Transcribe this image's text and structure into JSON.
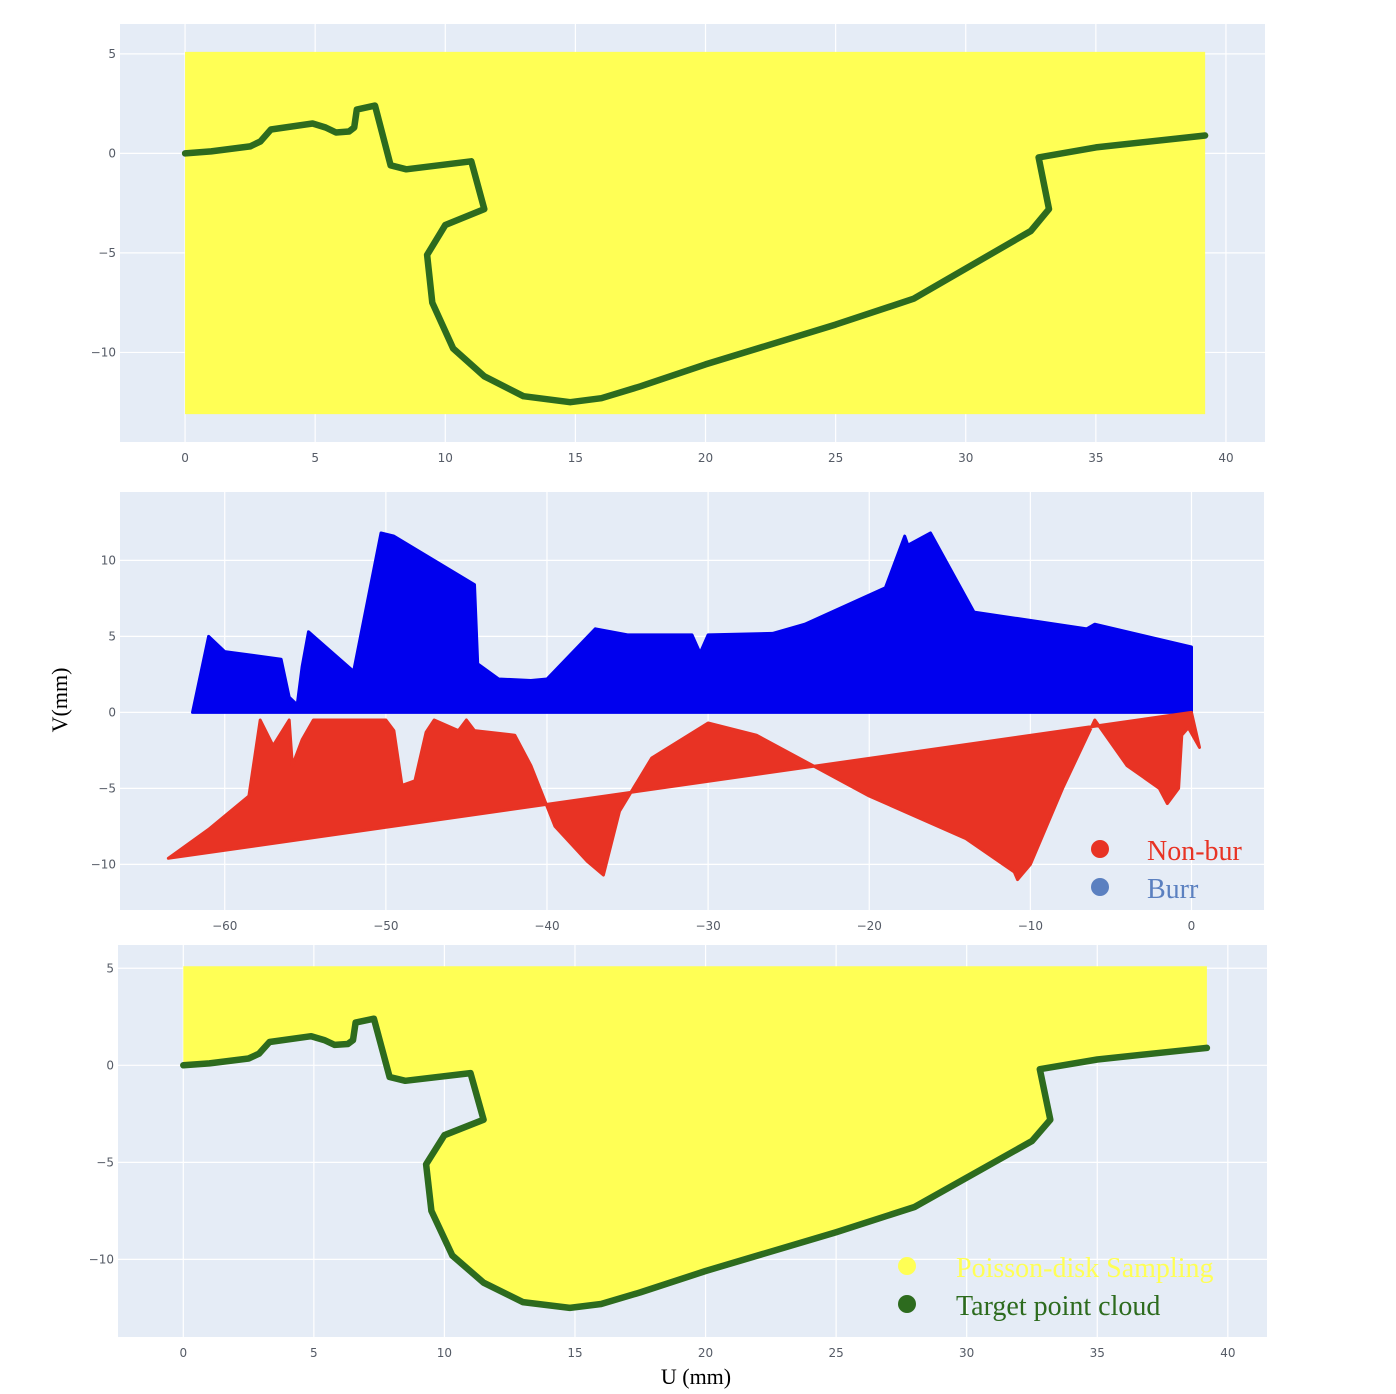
{
  "figure": {
    "ylabel": "V(mm)",
    "xlabel": "U (mm)",
    "colors": {
      "plot_bg": "#e5ecf6",
      "grid": "#ffffff",
      "yellow": "#ffff55",
      "green": "#2d6b1e",
      "blue": "#0000ee",
      "red": "#e83324",
      "burr_marker": "#5b80c0"
    }
  },
  "chart_data": [
    {
      "type": "scatter",
      "panel": "top",
      "xlim": [
        -2.5,
        41.5
      ],
      "ylim": [
        -14.5,
        6.5
      ],
      "xticks": [
        0,
        5,
        10,
        15,
        20,
        25,
        30,
        35,
        40
      ],
      "yticks": [
        5,
        0,
        -5,
        -10
      ],
      "series": [
        {
          "role": "sampling-region",
          "kind": "rect",
          "u_range": [
            0,
            39.2
          ],
          "v_range": [
            -13.1,
            5.1
          ]
        },
        {
          "role": "target-curve",
          "kind": "line",
          "points": [
            [
              0,
              0
            ],
            [
              1,
              0.1
            ],
            [
              2.5,
              0.35
            ],
            [
              2.9,
              0.6
            ],
            [
              3.3,
              1.2
            ],
            [
              4.9,
              1.5
            ],
            [
              5.4,
              1.3
            ],
            [
              5.8,
              1.05
            ],
            [
              6.3,
              1.1
            ],
            [
              6.5,
              1.3
            ],
            [
              6.6,
              2.2
            ],
            [
              7.3,
              2.4
            ],
            [
              7.9,
              -0.6
            ],
            [
              8.5,
              -0.8
            ],
            [
              11.0,
              -0.4
            ],
            [
              11.5,
              -2.8
            ],
            [
              10.0,
              -3.6
            ],
            [
              9.3,
              -5.1
            ],
            [
              9.5,
              -7.5
            ],
            [
              10.3,
              -9.8
            ],
            [
              11.5,
              -11.2
            ],
            [
              13.0,
              -12.2
            ],
            [
              14.8,
              -12.5
            ],
            [
              16.0,
              -12.3
            ],
            [
              17.5,
              -11.7
            ],
            [
              20.0,
              -10.6
            ],
            [
              25.0,
              -8.6
            ],
            [
              28.0,
              -7.3
            ],
            [
              32.5,
              -3.9
            ],
            [
              33.2,
              -2.8
            ],
            [
              32.8,
              -0.2
            ],
            [
              35.0,
              0.3
            ],
            [
              38.5,
              0.8
            ],
            [
              39.2,
              0.9
            ]
          ]
        }
      ]
    },
    {
      "type": "area",
      "panel": "middle",
      "xlim": [
        -66.5,
        4.5
      ],
      "ylim": [
        -13,
        14.5
      ],
      "xticks": [
        -60,
        -50,
        -40,
        -30,
        -20,
        -10,
        0
      ],
      "yticks": [
        10,
        5,
        0,
        -5,
        -10
      ],
      "series": [
        {
          "name": "Burr",
          "points": [
            [
              -62,
              0
            ],
            [
              -61,
              5
            ],
            [
              -60,
              4
            ],
            [
              -56.5,
              3.5
            ],
            [
              -56,
              1
            ],
            [
              -55.5,
              0.5
            ],
            [
              -55.2,
              3
            ],
            [
              -54.8,
              5.3
            ],
            [
              -52,
              2.7
            ],
            [
              -50.3,
              11.8
            ],
            [
              -49.5,
              11.6
            ],
            [
              -44.5,
              8.4
            ],
            [
              -44.3,
              3.2
            ],
            [
              -43,
              2.2
            ],
            [
              -41,
              2.1
            ],
            [
              -40,
              2.2
            ],
            [
              -37,
              5.5
            ],
            [
              -35,
              5.1
            ],
            [
              -31,
              5.1
            ],
            [
              -30.5,
              3.9
            ],
            [
              -30,
              5.1
            ],
            [
              -26,
              5.2
            ],
            [
              -24,
              5.8
            ],
            [
              -19,
              8.2
            ],
            [
              -17.8,
              11.6
            ],
            [
              -17.6,
              11
            ],
            [
              -16.2,
              11.8
            ],
            [
              -13.5,
              6.6
            ],
            [
              -6.5,
              5.5
            ],
            [
              -6,
              5.8
            ],
            [
              0,
              4.3
            ],
            [
              0,
              0
            ]
          ]
        },
        {
          "name": "Non-bur",
          "points": [
            [
              -63.5,
              -9.6
            ],
            [
              -61,
              -7.7
            ],
            [
              -58.5,
              -5.5
            ],
            [
              -57.8,
              -0.5
            ],
            [
              -57,
              -2.2
            ],
            [
              -56,
              -0.5
            ],
            [
              -55.8,
              -3.5
            ],
            [
              -55.2,
              -1.8
            ],
            [
              -54.5,
              -0.5
            ],
            [
              -50,
              -0.5
            ],
            [
              -49.5,
              -1.2
            ],
            [
              -49,
              -4.8
            ],
            [
              -48.2,
              -4.5
            ],
            [
              -47.5,
              -1.3
            ],
            [
              -47,
              -0.5
            ],
            [
              -45.5,
              -1.2
            ],
            [
              -45,
              -0.5
            ],
            [
              -44.5,
              -1.2
            ],
            [
              -42,
              -1.5
            ],
            [
              -41,
              -3.5
            ],
            [
              -39.5,
              -7.5
            ],
            [
              -37.5,
              -9.8
            ],
            [
              -36.5,
              -10.7
            ],
            [
              -35.5,
              -6.5
            ],
            [
              -33.5,
              -3
            ],
            [
              -30,
              -0.7
            ],
            [
              -27,
              -1.5
            ],
            [
              -20,
              -5.5
            ],
            [
              -14,
              -8.3
            ],
            [
              -11,
              -10.5
            ],
            [
              -10.8,
              -11
            ],
            [
              -10,
              -10
            ],
            [
              -8,
              -5
            ],
            [
              -6,
              -0.5
            ],
            [
              -4,
              -3.5
            ],
            [
              -2,
              -5
            ],
            [
              -1.5,
              -6
            ],
            [
              -0.8,
              -5
            ],
            [
              -0.6,
              -1.5
            ],
            [
              -0.2,
              -1
            ],
            [
              0.5,
              -2.3
            ],
            [
              0,
              0
            ]
          ]
        }
      ],
      "legend": {
        "position": "bottom-right",
        "entries": [
          "Non-bur",
          "Burr"
        ]
      }
    },
    {
      "type": "scatter",
      "panel": "bottom",
      "xlim": [
        -2.5,
        41.5
      ],
      "ylim": [
        -14,
        6.2
      ],
      "xticks": [
        0,
        5,
        10,
        15,
        20,
        25,
        30,
        35,
        40
      ],
      "yticks": [
        5,
        0,
        -5,
        -10
      ],
      "series": [
        {
          "name": "Poisson-disk Sampling",
          "kind": "region-above-curve",
          "v_top": 5.1
        },
        {
          "name": "Target point cloud",
          "kind": "line",
          "points": [
            [
              0,
              0
            ],
            [
              1,
              0.1
            ],
            [
              2.5,
              0.35
            ],
            [
              2.9,
              0.6
            ],
            [
              3.3,
              1.2
            ],
            [
              4.9,
              1.5
            ],
            [
              5.4,
              1.3
            ],
            [
              5.8,
              1.05
            ],
            [
              6.3,
              1.1
            ],
            [
              6.5,
              1.3
            ],
            [
              6.6,
              2.2
            ],
            [
              7.3,
              2.4
            ],
            [
              7.9,
              -0.6
            ],
            [
              8.5,
              -0.8
            ],
            [
              11.0,
              -0.4
            ],
            [
              11.5,
              -2.8
            ],
            [
              10.0,
              -3.6
            ],
            [
              9.3,
              -5.1
            ],
            [
              9.5,
              -7.5
            ],
            [
              10.3,
              -9.8
            ],
            [
              11.5,
              -11.2
            ],
            [
              13.0,
              -12.2
            ],
            [
              14.8,
              -12.5
            ],
            [
              16.0,
              -12.3
            ],
            [
              17.5,
              -11.7
            ],
            [
              20.0,
              -10.6
            ],
            [
              25.0,
              -8.6
            ],
            [
              28.0,
              -7.3
            ],
            [
              32.5,
              -3.9
            ],
            [
              33.2,
              -2.8
            ],
            [
              32.8,
              -0.2
            ],
            [
              35.0,
              0.3
            ],
            [
              38.5,
              0.8
            ],
            [
              39.2,
              0.9
            ]
          ]
        }
      ],
      "legend": {
        "position": "bottom-right",
        "entries": [
          "Poisson-disk Sampling",
          "Target point cloud"
        ]
      }
    }
  ]
}
